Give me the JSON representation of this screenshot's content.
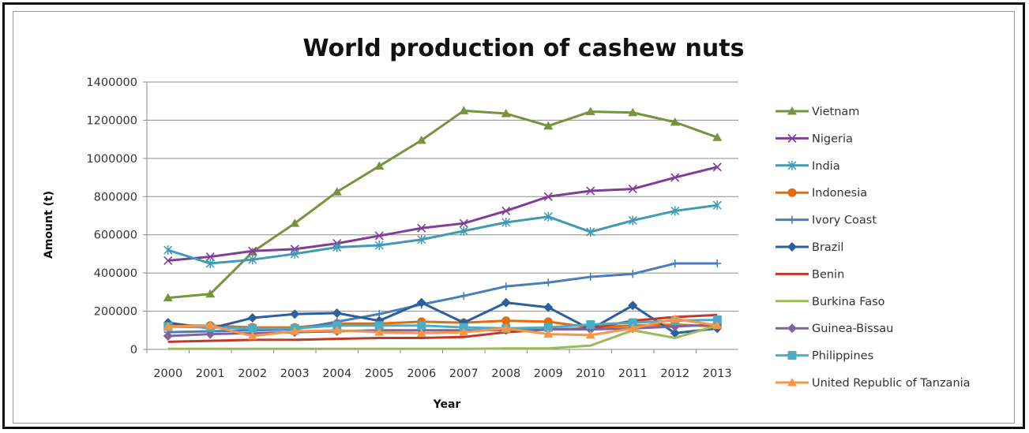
{
  "chart_data": {
    "type": "line",
    "title": "World production of cashew nuts",
    "xlabel": "Year",
    "ylabel": "Amount (t)",
    "ylim": [
      0,
      1400000
    ],
    "yticks": [
      "0",
      "200000",
      "400000",
      "600000",
      "800000",
      "1000000",
      "1200000",
      "1400000"
    ],
    "categories": [
      "2000",
      "2001",
      "2002",
      "2003",
      "2004",
      "2005",
      "2006",
      "2007",
      "2008",
      "2009",
      "2010",
      "2011",
      "2012",
      "2013"
    ],
    "grid": true,
    "legend_position": "right",
    "series": [
      {
        "name": "Vietnam",
        "color": "#77933c",
        "marker": "triangle",
        "values": [
          270000,
          290000,
          510000,
          660000,
          825000,
          960000,
          1095000,
          1250000,
          1235000,
          1170000,
          1245000,
          1240000,
          1190000,
          1110000
        ]
      },
      {
        "name": "Nigeria",
        "color": "#7f3f98",
        "marker": "x",
        "values": [
          465000,
          485000,
          515000,
          525000,
          555000,
          595000,
          635000,
          660000,
          725000,
          800000,
          830000,
          840000,
          900000,
          955000
        ]
      },
      {
        "name": "India",
        "color": "#3f9bb5",
        "marker": "star",
        "values": [
          520000,
          450000,
          470000,
          500000,
          535000,
          545000,
          575000,
          620000,
          665000,
          695000,
          615000,
          675000,
          725000,
          755000
        ]
      },
      {
        "name": "Indonesia",
        "color": "#e46c0a",
        "marker": "circle",
        "values": [
          125000,
          125000,
          115000,
          115000,
          135000,
          135000,
          145000,
          140000,
          150000,
          145000,
          115000,
          125000,
          130000,
          120000
        ]
      },
      {
        "name": "Ivory Coast",
        "color": "#4a7ebb",
        "marker": "plus",
        "values": [
          90000,
          95000,
          100000,
          105000,
          145000,
          185000,
          235000,
          280000,
          330000,
          350000,
          380000,
          395000,
          450000,
          450000
        ]
      },
      {
        "name": "Brazil",
        "color": "#2c5f9e",
        "marker": "diamond",
        "values": [
          140000,
          110000,
          165000,
          185000,
          190000,
          150000,
          245000,
          140000,
          245000,
          220000,
          105000,
          230000,
          85000,
          110000
        ]
      },
      {
        "name": "Benin",
        "color": "#c0392b",
        "marker": "none",
        "values": [
          40000,
          45000,
          50000,
          50000,
          55000,
          60000,
          60000,
          65000,
          90000,
          105000,
          110000,
          150000,
          170000,
          180000
        ]
      },
      {
        "name": "Burkina Faso",
        "color": "#9bbb59",
        "marker": "none",
        "values": [
          3000,
          3000,
          3000,
          3000,
          3000,
          3000,
          3000,
          3000,
          5000,
          5000,
          20000,
          100000,
          60000,
          125000
        ]
      },
      {
        "name": "Guinea-Bissau",
        "color": "#8064a2",
        "marker": "diamond",
        "values": [
          70000,
          80000,
          85000,
          90000,
          95000,
          100000,
          100000,
          100000,
          100000,
          105000,
          105000,
          110000,
          120000,
          130000
        ]
      },
      {
        "name": "Philippines",
        "color": "#4bacc6",
        "marker": "square",
        "values": [
          120000,
          115000,
          110000,
          110000,
          125000,
          125000,
          125000,
          115000,
          110000,
          115000,
          130000,
          140000,
          150000,
          155000
        ]
      },
      {
        "name": "United Republic of Tanzania",
        "color": "#f79646",
        "marker": "triangle",
        "values": [
          120000,
          125000,
          70000,
          95000,
          100000,
          90000,
          85000,
          90000,
          110000,
          80000,
          75000,
          110000,
          160000,
          125000
        ]
      }
    ]
  }
}
